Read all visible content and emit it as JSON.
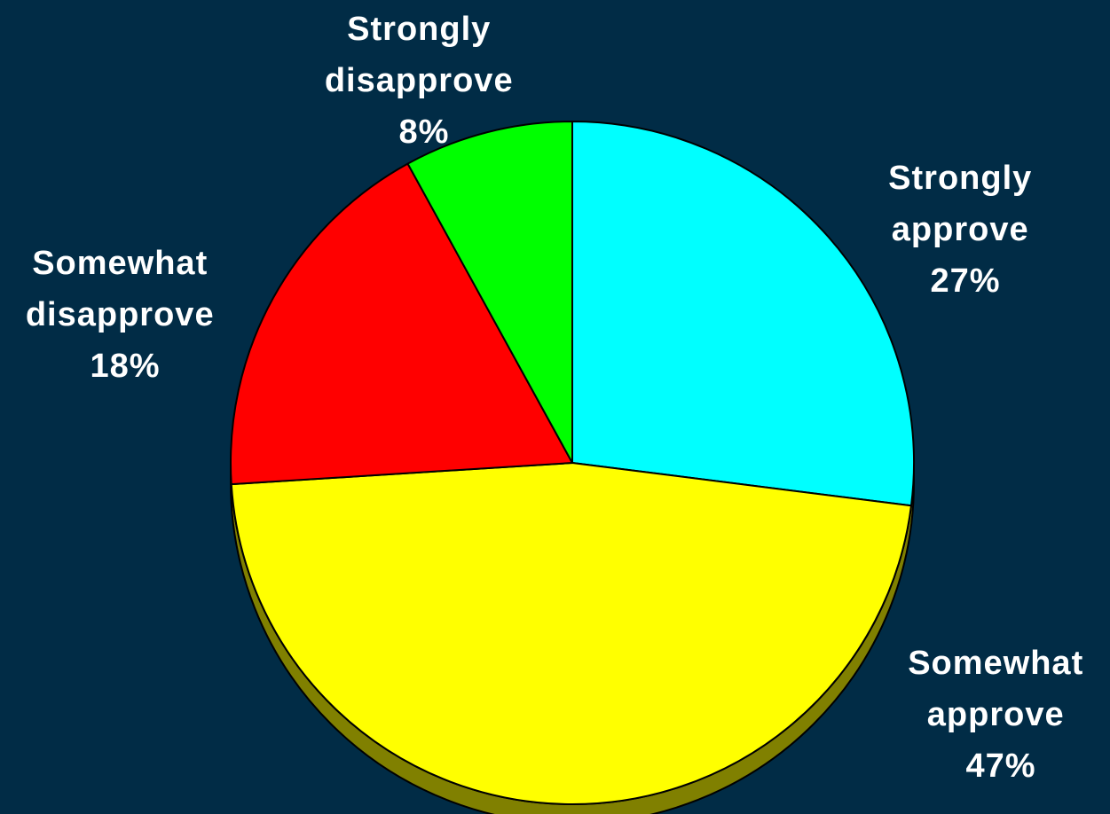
{
  "chart_data": {
    "type": "pie",
    "style": "3d",
    "slices": [
      {
        "label_line1": "Strongly",
        "label_line2": "approve",
        "value": 27,
        "value_label": "27%",
        "color": "#00ffff"
      },
      {
        "label_line1": "Somewhat",
        "label_line2": "approve",
        "value": 47,
        "value_label": "47%",
        "color": "#ffff00"
      },
      {
        "label_line1": "Somewhat",
        "label_line2": "disapprove",
        "value": 18,
        "value_label": "18%",
        "color": "#ff0000"
      },
      {
        "label_line1": "Strongly",
        "label_line2": "disapprove",
        "value": 8,
        "value_label": "8%",
        "color": "#00ff00"
      }
    ],
    "start_angle": "12 o'clock",
    "direction": "clockwise",
    "side_color": "#808000",
    "background_color": "#012c46"
  }
}
